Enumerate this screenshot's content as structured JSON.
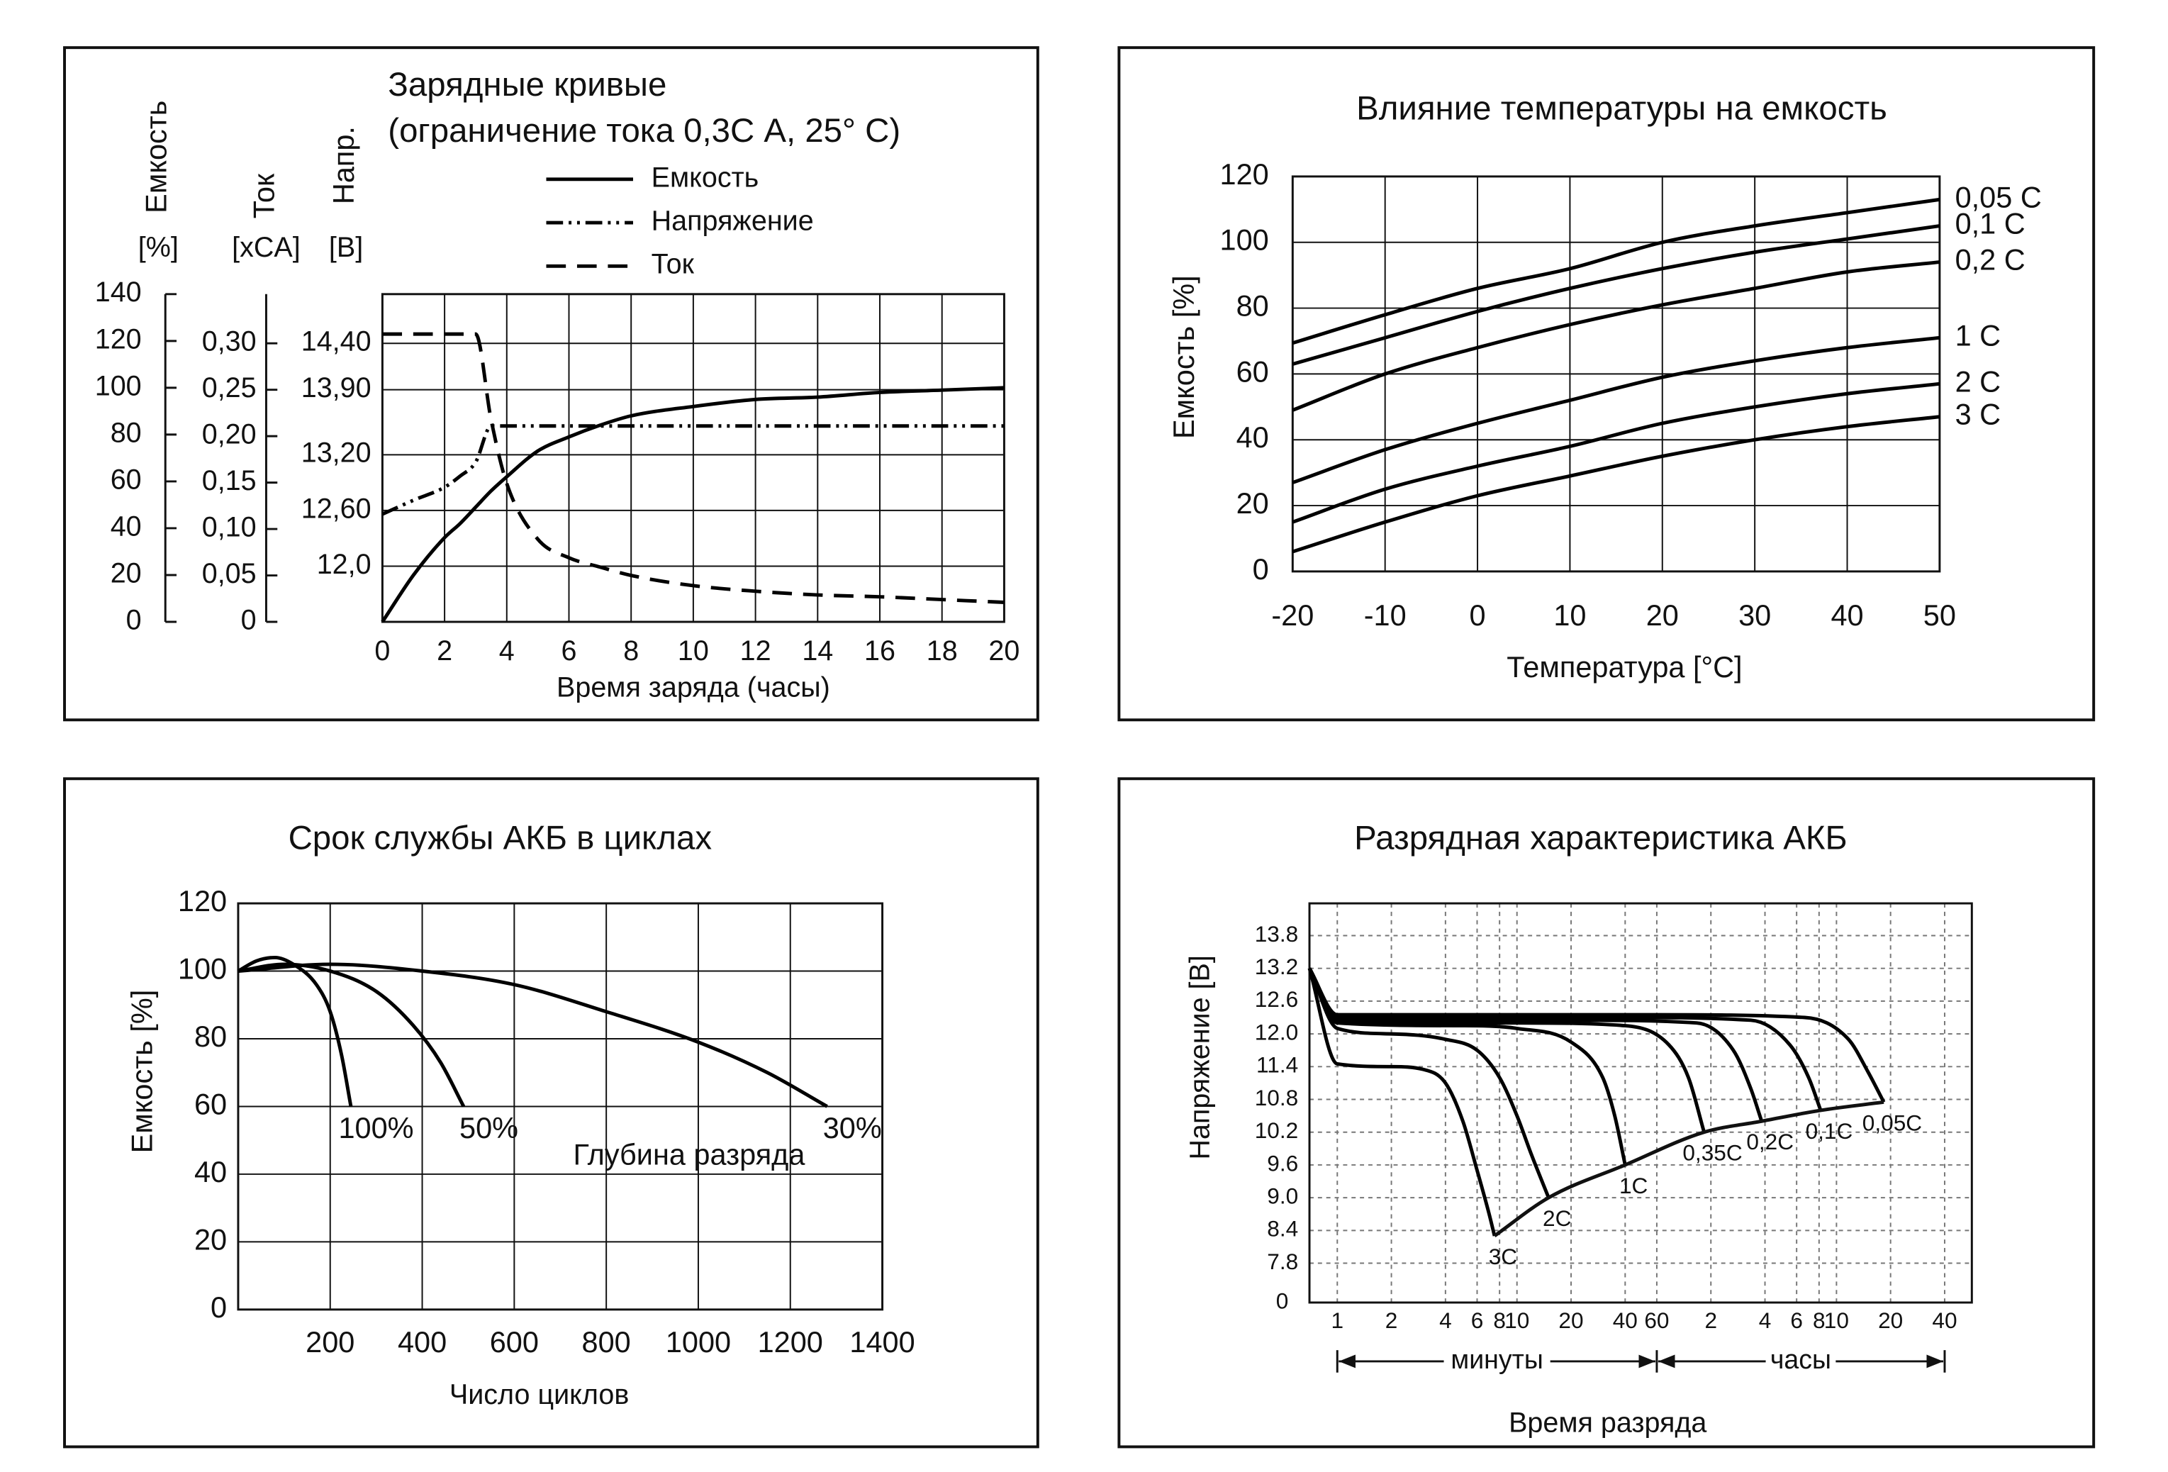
{
  "chart_data": [
    {
      "type": "line",
      "title": "Зарядные кривые",
      "subtitle": "(ограничение тока 0,3С А, 25° С)",
      "xlabel": "Время заряда (часы)",
      "x": [
        0,
        1,
        2,
        2.5,
        3,
        3.5,
        4,
        5,
        6,
        7,
        8,
        10,
        12,
        14,
        16,
        18,
        20
      ],
      "xlim": [
        0,
        20
      ],
      "xticks": [
        0,
        2,
        4,
        6,
        8,
        10,
        12,
        14,
        16,
        18,
        20
      ],
      "ylabel": "Емкость",
      "yunit": "[%]",
      "ylim": [
        0,
        140
      ],
      "yticks": [
        0,
        20,
        40,
        60,
        80,
        100,
        120,
        140
      ],
      "y2label": "Ток",
      "y2unit": "[xCA]",
      "y2lim": [
        0,
        0.353
      ],
      "y2ticks": [
        0,
        {
          "value": 0.05,
          "label": "0,05"
        },
        {
          "value": 0.1,
          "label": "0,10"
        },
        {
          "value": 0.15,
          "label": "0,15"
        },
        {
          "value": 0.2,
          "label": "0,20"
        },
        {
          "value": 0.25,
          "label": "0,25"
        },
        {
          "value": 0.3,
          "label": "0,30"
        }
      ],
      "y3label": "Напр.",
      "y3unit": "[B]",
      "y3lim": [
        11.4,
        14.93
      ],
      "y3ticks": [
        {
          "value": 12,
          "label": "12,0"
        },
        {
          "value": 12.6,
          "label": "12,60"
        },
        {
          "value": 13.2,
          "label": "13,20"
        },
        {
          "value": 13.9,
          "label": "13,90"
        },
        {
          "value": 14.4,
          "label": "14,40"
        }
      ],
      "grid": true,
      "grid_axis": "y3",
      "legend": "top-right",
      "series": [
        {
          "name": "Емкость",
          "color": "#000000",
          "dash": "solid",
          "values": [
            0,
            20,
            36,
            42,
            49,
            56,
            62,
            73,
            79,
            84,
            88,
            92,
            95,
            96,
            98,
            99,
            100
          ]
        },
        {
          "name": "Напряжение",
          "color": "#000000",
          "dash": "dashdotdot",
          "axis": "y3",
          "values": [
            12.56,
            12.71,
            12.85,
            12.97,
            13.12,
            13.51,
            13.51,
            13.51,
            13.51,
            13.51,
            13.51,
            13.51,
            13.51,
            13.51,
            13.51,
            13.51,
            13.51
          ]
        },
        {
          "name": "Ток",
          "color": "#000000",
          "dash": "dashed",
          "axis": "y2",
          "values": [
            0.31,
            0.31,
            0.31,
            0.31,
            0.31,
            0.217,
            0.149,
            0.089,
            0.069,
            0.059,
            0.05,
            0.039,
            0.033,
            0.029,
            0.027,
            0.024,
            0.021
          ]
        }
      ]
    },
    {
      "type": "line",
      "title": "Влияние температуры на емкость",
      "xlabel": "Температура [°C]",
      "ylabel": "Емкость [%]",
      "x": [
        -20,
        -10,
        0,
        10,
        20,
        30,
        40,
        50
      ],
      "xlim": [
        -20,
        50
      ],
      "xticks": [
        -20,
        -10,
        0,
        10,
        20,
        30,
        40,
        50
      ],
      "ylim": [
        0,
        120
      ],
      "yticks": [
        0,
        20,
        40,
        60,
        80,
        100,
        120
      ],
      "grid": true,
      "series": [
        {
          "name": "0,05 C",
          "color": "#000000",
          "values": [
            69.4,
            78,
            86,
            92,
            100,
            105,
            109,
            113
          ]
        },
        {
          "name": "0,1 C",
          "color": "#000000",
          "values": [
            63,
            71,
            79,
            86,
            92,
            97,
            101,
            105
          ]
        },
        {
          "name": "0,2 C",
          "color": "#000000",
          "values": [
            49,
            60,
            68,
            75,
            81,
            86,
            91,
            94
          ]
        },
        {
          "name": "1 C",
          "color": "#000000",
          "values": [
            27,
            37,
            45,
            52,
            59,
            64,
            68,
            71
          ]
        },
        {
          "name": "2 C",
          "color": "#000000",
          "values": [
            15,
            25,
            32,
            38,
            45,
            50,
            54,
            57
          ]
        },
        {
          "name": "3 C",
          "color": "#000000",
          "values": [
            6,
            15,
            23,
            29,
            35,
            40,
            44,
            47
          ]
        }
      ]
    },
    {
      "type": "line",
      "title": "Срок службы АКБ в циклах",
      "xlabel": "Число циклов",
      "ylabel": "Емкость [%]",
      "annotation": "Глубина разряда",
      "xlim": [
        0,
        1400
      ],
      "xticks": [
        200,
        400,
        600,
        800,
        1000,
        1200,
        1400
      ],
      "ylim": [
        0,
        120
      ],
      "yticks": [
        0,
        20,
        40,
        60,
        80,
        100,
        120
      ],
      "grid": true,
      "series": [
        {
          "name": "100%",
          "color": "#000000",
          "x": [
            0,
            40,
            80,
            120,
            170,
            200,
            225,
            245
          ],
          "values": [
            100,
            103,
            104,
            102,
            96,
            88,
            75,
            60
          ]
        },
        {
          "name": "50%",
          "color": "#000000",
          "x": [
            0,
            100,
            200,
            300,
            380,
            440,
            490
          ],
          "values": [
            100,
            102,
            100,
            94,
            84,
            73,
            60
          ]
        },
        {
          "name": "30%",
          "color": "#000000",
          "x": [
            0,
            200,
            400,
            600,
            800,
            1000,
            1150,
            1280
          ],
          "values": [
            100,
            102,
            100,
            96,
            88,
            79,
            70,
            60
          ]
        }
      ]
    },
    {
      "type": "line",
      "title": "Разрядная характеристика АКБ",
      "xlabel": "Время разряда",
      "ylabel": "Напряжение [B]",
      "range_labels": [
        "минуты",
        "часы"
      ],
      "xlog": true,
      "xlim": [
        0.7,
        3400
      ],
      "xticks": [
        1,
        2,
        4,
        6,
        8,
        10,
        20,
        40,
        60,
        {
          "value": 120,
          "label": "2"
        },
        {
          "value": 240,
          "label": "4"
        },
        {
          "value": 360,
          "label": "6"
        },
        {
          "value": 480,
          "label": "8"
        },
        {
          "value": 600,
          "label": "10"
        },
        {
          "value": 1200,
          "label": "20"
        },
        {
          "value": 2400,
          "label": "40"
        }
      ],
      "ylim": [
        7.08,
        14.39
      ],
      "yticks": [
        7.8,
        8.4,
        {
          "value": 9,
          "label": "9.0"
        },
        9.6,
        10.2,
        10.8,
        11.4,
        {
          "value": 12,
          "label": "12.0"
        },
        12.6,
        13.2,
        13.8
      ],
      "ybreak_label": "0",
      "grid": true,
      "series": [
        {
          "name": "3C",
          "color": "#000000",
          "x": [
            0.7,
            1,
            2,
            3,
            4,
            5,
            6,
            7,
            7.5
          ],
          "values": [
            13.2,
            11.45,
            11.4,
            11.35,
            11.1,
            10.4,
            9.5,
            8.7,
            8.3
          ]
        },
        {
          "name": "2C",
          "color": "#000000",
          "x": [
            0.7,
            1,
            2,
            4,
            6,
            8,
            10,
            12,
            15
          ],
          "values": [
            13.2,
            12.1,
            12.0,
            11.9,
            11.7,
            11.2,
            10.5,
            9.8,
            9.0
          ]
        },
        {
          "name": "1C",
          "color": "#000000",
          "x": [
            0.7,
            1,
            5,
            10,
            20,
            30,
            35,
            40
          ],
          "values": [
            13.2,
            12.2,
            12.15,
            12.1,
            11.85,
            11.2,
            10.5,
            9.6
          ]
        },
        {
          "name": "0,35C",
          "color": "#000000",
          "x": [
            0.7,
            1,
            10,
            40,
            70,
            90,
            110
          ],
          "values": [
            13.2,
            12.25,
            12.2,
            12.15,
            11.8,
            11.2,
            10.2
          ]
        },
        {
          "name": "0,2C",
          "color": "#000000",
          "x": [
            0.7,
            1,
            20,
            100,
            160,
            200,
            230
          ],
          "values": [
            13.2,
            12.3,
            12.25,
            12.2,
            11.7,
            11.0,
            10.4
          ]
        },
        {
          "name": "0,1C",
          "color": "#000000",
          "x": [
            0.7,
            1,
            40,
            200,
            330,
            420,
            490
          ],
          "values": [
            13.2,
            12.3,
            12.3,
            12.25,
            11.8,
            11.2,
            10.6
          ]
        },
        {
          "name": "0,05C",
          "color": "#000000",
          "x": [
            0.7,
            1,
            60,
            400,
            700,
            900,
            1100
          ],
          "values": [
            13.2,
            12.35,
            12.35,
            12.3,
            11.9,
            11.3,
            10.75
          ]
        }
      ]
    }
  ]
}
